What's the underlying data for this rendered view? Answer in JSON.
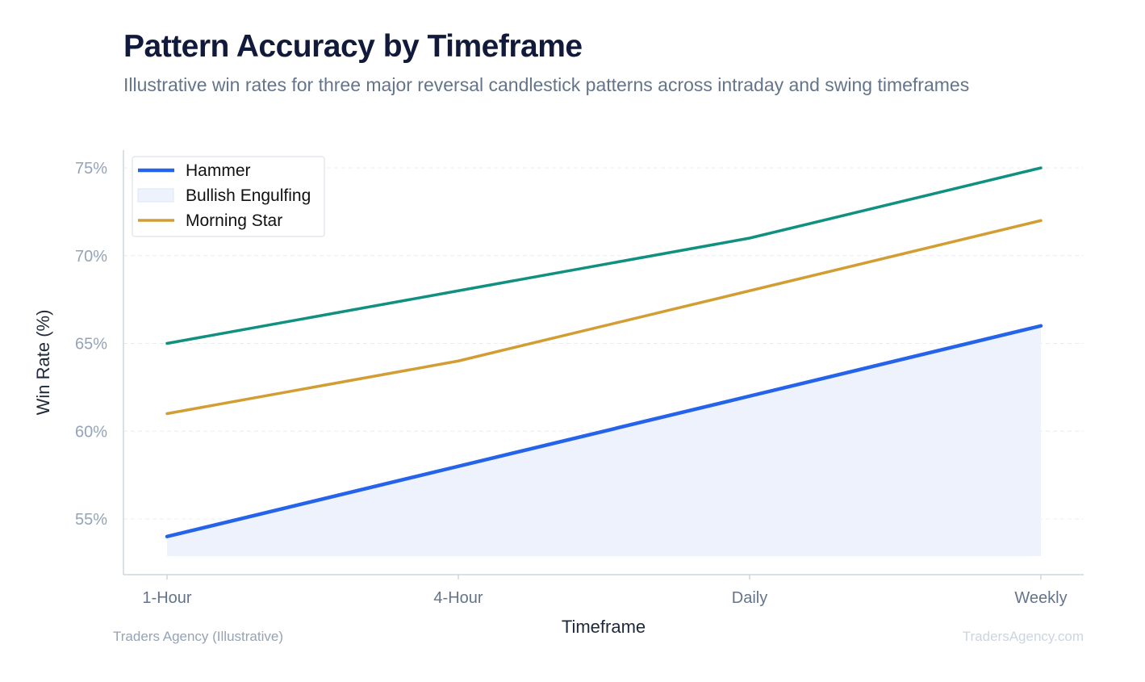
{
  "header": {
    "title": "Pattern Accuracy by Timeframe",
    "subtitle": "Illustrative win rates for three major reversal candlestick patterns across intraday and swing timeframes"
  },
  "footer": {
    "source": "Traders Agency (Illustrative)",
    "brand": "TradersAgency.com"
  },
  "colors": {
    "hammer": "#2563eb",
    "hammer_fill": "#eef2fc",
    "engulfing": "#0f9080",
    "morning_star": "#d29e33",
    "grid": "#e8ecf1",
    "axis": "#cbd5e1",
    "tick_text": "#94a3b8",
    "x_tick_text": "#64748b",
    "axis_title": "#1e293b"
  },
  "chart_data": {
    "type": "line",
    "title": "Pattern Accuracy by Timeframe",
    "subtitle": "Illustrative win rates for three major reversal candlestick patterns across intraday and swing timeframes",
    "xlabel": "Timeframe",
    "ylabel": "Win Rate (%)",
    "categories": [
      "1-Hour",
      "4-Hour",
      "Daily",
      "Weekly"
    ],
    "ylim": [
      52,
      76
    ],
    "yticks": [
      55,
      60,
      65,
      70,
      75
    ],
    "ytick_labels": [
      "55%",
      "60%",
      "65%",
      "70%",
      "75%"
    ],
    "grid": true,
    "legend_position": "top-left",
    "legend": [
      {
        "label": "Hammer",
        "marker": "line",
        "color": "#2563eb"
      },
      {
        "label": "Bullish Engulfing",
        "marker": "fill",
        "color": "#eef2fc"
      },
      {
        "label": "Morning Star",
        "marker": "line",
        "color": "#d29e33"
      }
    ],
    "series": [
      {
        "name": "Hammer",
        "values": [
          54,
          58,
          62,
          66
        ],
        "color": "#2563eb",
        "area_fill": true
      },
      {
        "values": [
          65,
          68,
          71,
          75
        ],
        "color": "#0f9080"
      },
      {
        "name": "Morning Star",
        "values": [
          61,
          64,
          68,
          72
        ],
        "color": "#d29e33"
      }
    ]
  }
}
